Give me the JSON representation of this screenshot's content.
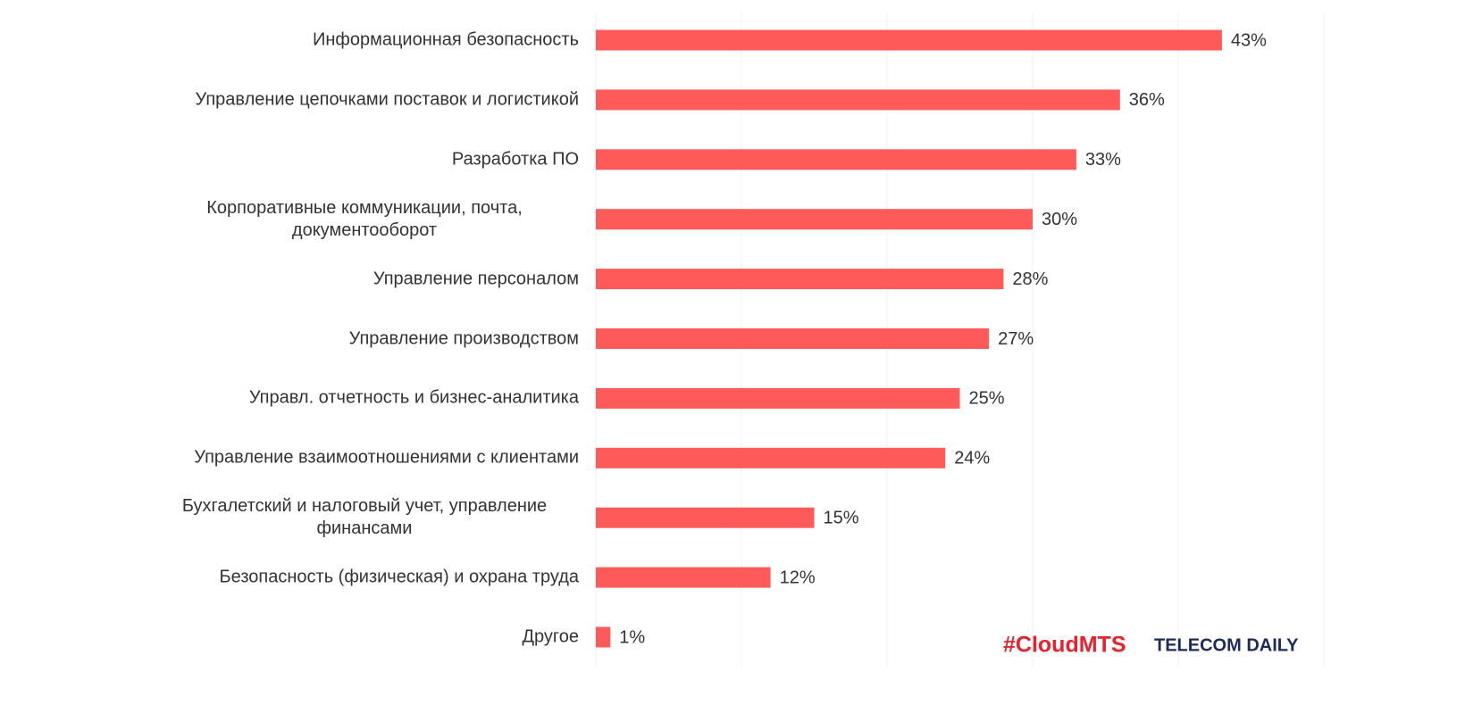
{
  "chart_data": {
    "type": "bar",
    "orientation": "horizontal",
    "categories": [
      "Информационная безопасность",
      "Управление цепочками поставок и логистикой",
      "Разработка ПО",
      "Корпоративные коммуникации, почта, документооборот",
      "Управление персоналом",
      "Управление производством",
      "Управл. отчетность и бизнес-аналитика",
      "Управление взаимоотношениями с клиентами",
      "Бухгалетский и налоговый учет, управление финансами",
      "Безопасность (физическая) и охрана труда",
      "Другое"
    ],
    "values": [
      43,
      36,
      33,
      30,
      28,
      27,
      25,
      24,
      15,
      12,
      1
    ],
    "value_labels": [
      "43%",
      "36%",
      "33%",
      "30%",
      "28%",
      "27%",
      "25%",
      "24%",
      "15%",
      "12%",
      "1%"
    ],
    "color": "#ff5a5a",
    "xlim": [
      0,
      50
    ],
    "xticks": [
      0,
      10,
      20,
      30,
      40,
      50
    ],
    "grid": true,
    "logos": [
      "#CloudMTS",
      "TELECOM DAILY"
    ]
  }
}
